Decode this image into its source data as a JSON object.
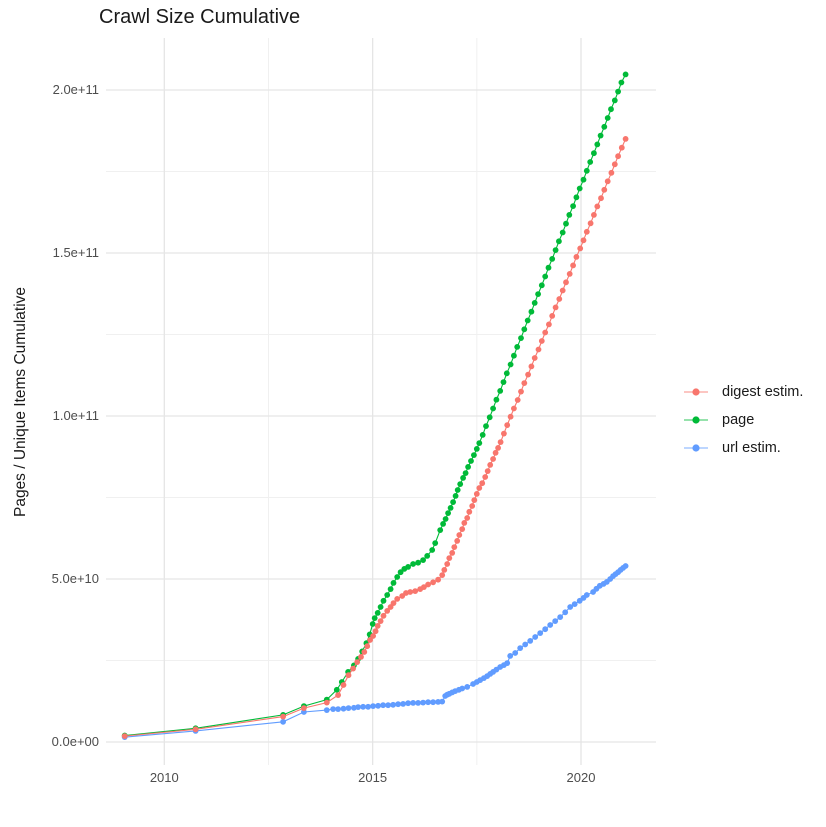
{
  "chart_data": {
    "type": "scatter",
    "title": "Crawl Size Cumulative",
    "xlabel": "",
    "ylabel": "Pages / Unique Items Cumulative",
    "legend_position": "right",
    "grid": "major+minor",
    "x_unit": "year",
    "xlim": [
      2008.6,
      2021.8
    ],
    "ylim": [
      0,
      216000000000.0
    ],
    "value_unit": "billions (1e9 items)",
    "xticks": {
      "values": [
        2010,
        2015,
        2020
      ],
      "labels": [
        "2010",
        "2015",
        "2020"
      ],
      "minor": [
        2012.5,
        2017.5
      ]
    },
    "yticks": {
      "values": [
        0,
        50,
        100,
        150,
        200
      ],
      "labels": [
        "0.0e+00",
        "5.0e+10",
        "1.0e+11",
        "1.5e+11",
        "2.0e+11"
      ],
      "minor": [
        25,
        75,
        125,
        175
      ]
    },
    "series": [
      {
        "id": "digest-estim",
        "name": "digest estim.",
        "color": "#F8766D",
        "points": [
          [
            2009.05,
            1.8
          ],
          [
            2010.75,
            3.9
          ],
          [
            2012.85,
            7.8
          ],
          [
            2013.35,
            10.4
          ],
          [
            2013.9,
            12.1
          ],
          [
            2014.17,
            14.4
          ],
          [
            2014.3,
            17.5
          ],
          [
            2014.42,
            20.5
          ],
          [
            2014.53,
            22.5
          ],
          [
            2014.63,
            24.5
          ],
          [
            2014.72,
            26.1
          ],
          [
            2014.8,
            27.6
          ],
          [
            2014.87,
            29.4
          ],
          [
            2014.94,
            31.3
          ],
          [
            2015.01,
            32.5
          ],
          [
            2015.07,
            34.0
          ],
          [
            2015.12,
            35.6
          ],
          [
            2015.19,
            37.1
          ],
          [
            2015.26,
            38.7
          ],
          [
            2015.35,
            40.2
          ],
          [
            2015.43,
            41.4
          ],
          [
            2015.5,
            42.6
          ],
          [
            2015.59,
            43.9
          ],
          [
            2015.71,
            44.8
          ],
          [
            2015.8,
            45.7
          ],
          [
            2015.9,
            46.0
          ],
          [
            2016.02,
            46.3
          ],
          [
            2016.14,
            46.9
          ],
          [
            2016.23,
            47.5
          ],
          [
            2016.33,
            48.3
          ],
          [
            2016.45,
            49.0
          ],
          [
            2016.57,
            49.8
          ],
          [
            2016.67,
            51.2
          ],
          [
            2016.72,
            52.8
          ],
          [
            2016.79,
            54.6
          ],
          [
            2016.84,
            56.4
          ],
          [
            2016.91,
            58.0
          ],
          [
            2016.96,
            59.8
          ],
          [
            2017.03,
            61.7
          ],
          [
            2017.08,
            63.5
          ],
          [
            2017.15,
            65.3
          ],
          [
            2017.2,
            67.2
          ],
          [
            2017.27,
            68.7
          ],
          [
            2017.32,
            70.6
          ],
          [
            2017.39,
            72.4
          ],
          [
            2017.44,
            74.2
          ],
          [
            2017.5,
            76.1
          ],
          [
            2017.56,
            77.9
          ],
          [
            2017.63,
            79.4
          ],
          [
            2017.7,
            81.3
          ],
          [
            2017.76,
            83.1
          ],
          [
            2017.82,
            85.0
          ],
          [
            2017.89,
            86.8
          ],
          [
            2017.95,
            88.7
          ],
          [
            2018.01,
            90.2
          ],
          [
            2018.07,
            92.0
          ],
          [
            2018.15,
            94.6
          ],
          [
            2018.23,
            97.2
          ],
          [
            2018.31,
            99.8
          ],
          [
            2018.39,
            102.3
          ],
          [
            2018.48,
            104.9
          ],
          [
            2018.56,
            107.5
          ],
          [
            2018.64,
            110.1
          ],
          [
            2018.73,
            112.7
          ],
          [
            2018.81,
            115.2
          ],
          [
            2018.89,
            117.8
          ],
          [
            2018.98,
            120.4
          ],
          [
            2019.06,
            123.0
          ],
          [
            2019.14,
            125.6
          ],
          [
            2019.23,
            128.1
          ],
          [
            2019.31,
            130.7
          ],
          [
            2019.39,
            133.3
          ],
          [
            2019.48,
            135.9
          ],
          [
            2019.56,
            138.5
          ],
          [
            2019.64,
            141.0
          ],
          [
            2019.73,
            143.6
          ],
          [
            2019.81,
            146.2
          ],
          [
            2019.89,
            148.8
          ],
          [
            2019.98,
            151.4
          ],
          [
            2020.06,
            153.9
          ],
          [
            2020.14,
            156.5
          ],
          [
            2020.23,
            159.1
          ],
          [
            2020.31,
            161.7
          ],
          [
            2020.39,
            164.3
          ],
          [
            2020.48,
            166.8
          ],
          [
            2020.56,
            169.4
          ],
          [
            2020.64,
            172.0
          ],
          [
            2020.73,
            174.6
          ],
          [
            2020.81,
            177.2
          ],
          [
            2020.89,
            179.7
          ],
          [
            2020.98,
            182.3
          ],
          [
            2021.07,
            185.0
          ]
        ]
      },
      {
        "id": "page",
        "name": "page",
        "color": "#00BA38",
        "points": [
          [
            2009.05,
            2.0
          ],
          [
            2010.75,
            4.2
          ],
          [
            2012.85,
            8.3
          ],
          [
            2013.35,
            11.0
          ],
          [
            2013.9,
            13.0
          ],
          [
            2014.14,
            16.0
          ],
          [
            2014.26,
            18.4
          ],
          [
            2014.41,
            21.5
          ],
          [
            2014.55,
            23.5
          ],
          [
            2014.65,
            25.5
          ],
          [
            2014.75,
            27.8
          ],
          [
            2014.85,
            30.3
          ],
          [
            2014.93,
            33.0
          ],
          [
            2015.0,
            36.2
          ],
          [
            2015.05,
            38.0
          ],
          [
            2015.12,
            39.6
          ],
          [
            2015.19,
            41.4
          ],
          [
            2015.26,
            43.3
          ],
          [
            2015.35,
            45.1
          ],
          [
            2015.43,
            46.9
          ],
          [
            2015.5,
            48.8
          ],
          [
            2015.59,
            50.6
          ],
          [
            2015.67,
            52.1
          ],
          [
            2015.76,
            53.1
          ],
          [
            2015.85,
            53.7
          ],
          [
            2015.97,
            54.6
          ],
          [
            2016.09,
            55.0
          ],
          [
            2016.21,
            55.8
          ],
          [
            2016.31,
            57.1
          ],
          [
            2016.43,
            58.9
          ],
          [
            2016.5,
            61.0
          ],
          [
            2016.62,
            65.0
          ],
          [
            2016.69,
            66.9
          ],
          [
            2016.75,
            68.4
          ],
          [
            2016.81,
            70.2
          ],
          [
            2016.87,
            71.8
          ],
          [
            2016.93,
            73.6
          ],
          [
            2016.99,
            75.5
          ],
          [
            2017.04,
            77.3
          ],
          [
            2017.1,
            79.1
          ],
          [
            2017.17,
            81.0
          ],
          [
            2017.23,
            82.5
          ],
          [
            2017.29,
            84.4
          ],
          [
            2017.36,
            86.2
          ],
          [
            2017.43,
            88.0
          ],
          [
            2017.5,
            89.9
          ],
          [
            2017.56,
            91.7
          ],
          [
            2017.64,
            94.2
          ],
          [
            2017.72,
            96.9
          ],
          [
            2017.81,
            99.6
          ],
          [
            2017.89,
            102.3
          ],
          [
            2017.97,
            105.0
          ],
          [
            2018.06,
            107.7
          ],
          [
            2018.14,
            110.4
          ],
          [
            2018.22,
            113.1
          ],
          [
            2018.31,
            115.8
          ],
          [
            2018.39,
            118.5
          ],
          [
            2018.47,
            121.2
          ],
          [
            2018.56,
            123.9
          ],
          [
            2018.64,
            126.6
          ],
          [
            2018.72,
            129.3
          ],
          [
            2018.81,
            132.0
          ],
          [
            2018.89,
            134.7
          ],
          [
            2018.97,
            137.4
          ],
          [
            2019.06,
            140.1
          ],
          [
            2019.14,
            142.8
          ],
          [
            2019.22,
            145.5
          ],
          [
            2019.31,
            148.2
          ],
          [
            2019.39,
            150.9
          ],
          [
            2019.47,
            153.6
          ],
          [
            2019.56,
            156.3
          ],
          [
            2019.64,
            159.0
          ],
          [
            2019.72,
            161.7
          ],
          [
            2019.81,
            164.4
          ],
          [
            2019.89,
            167.1
          ],
          [
            2019.97,
            169.8
          ],
          [
            2020.06,
            172.5
          ],
          [
            2020.14,
            175.2
          ],
          [
            2020.22,
            177.9
          ],
          [
            2020.31,
            180.6
          ],
          [
            2020.39,
            183.3
          ],
          [
            2020.47,
            186.0
          ],
          [
            2020.56,
            188.7
          ],
          [
            2020.64,
            191.4
          ],
          [
            2020.72,
            194.1
          ],
          [
            2020.81,
            196.8
          ],
          [
            2020.89,
            199.5
          ],
          [
            2020.97,
            202.3
          ],
          [
            2021.07,
            204.8
          ]
        ]
      },
      {
        "id": "url-estim",
        "name": "url estim.",
        "color": "#619CFF",
        "points": [
          [
            2009.05,
            1.5
          ],
          [
            2010.75,
            3.4
          ],
          [
            2012.85,
            6.2
          ],
          [
            2013.35,
            9.2
          ],
          [
            2013.9,
            9.8
          ],
          [
            2014.05,
            10.1
          ],
          [
            2014.17,
            10.1
          ],
          [
            2014.3,
            10.2
          ],
          [
            2014.42,
            10.4
          ],
          [
            2014.55,
            10.5
          ],
          [
            2014.65,
            10.7
          ],
          [
            2014.77,
            10.8
          ],
          [
            2014.89,
            10.8
          ],
          [
            2015.01,
            11.0
          ],
          [
            2015.13,
            11.1
          ],
          [
            2015.25,
            11.3
          ],
          [
            2015.37,
            11.3
          ],
          [
            2015.49,
            11.4
          ],
          [
            2015.61,
            11.6
          ],
          [
            2015.73,
            11.7
          ],
          [
            2015.85,
            11.9
          ],
          [
            2015.97,
            12.0
          ],
          [
            2016.09,
            12.0
          ],
          [
            2016.21,
            12.1
          ],
          [
            2016.33,
            12.2
          ],
          [
            2016.45,
            12.2
          ],
          [
            2016.57,
            12.3
          ],
          [
            2016.67,
            12.4
          ],
          [
            2016.74,
            14.1
          ],
          [
            2016.79,
            14.5
          ],
          [
            2016.84,
            14.8
          ],
          [
            2016.91,
            15.2
          ],
          [
            2016.98,
            15.6
          ],
          [
            2017.07,
            16.0
          ],
          [
            2017.15,
            16.4
          ],
          [
            2017.27,
            16.9
          ],
          [
            2017.41,
            17.8
          ],
          [
            2017.5,
            18.4
          ],
          [
            2017.58,
            19.0
          ],
          [
            2017.67,
            19.6
          ],
          [
            2017.75,
            20.2
          ],
          [
            2017.82,
            20.9
          ],
          [
            2017.89,
            21.5
          ],
          [
            2017.97,
            22.2
          ],
          [
            2018.06,
            23.0
          ],
          [
            2018.15,
            23.6
          ],
          [
            2018.23,
            24.2
          ],
          [
            2018.3,
            26.4
          ],
          [
            2018.42,
            27.3
          ],
          [
            2018.54,
            28.8
          ],
          [
            2018.66,
            29.9
          ],
          [
            2018.78,
            31.0
          ],
          [
            2018.9,
            32.2
          ],
          [
            2019.02,
            33.4
          ],
          [
            2019.14,
            34.6
          ],
          [
            2019.26,
            35.9
          ],
          [
            2019.38,
            37.1
          ],
          [
            2019.5,
            38.3
          ],
          [
            2019.62,
            39.8
          ],
          [
            2019.74,
            41.4
          ],
          [
            2019.85,
            42.3
          ],
          [
            2019.97,
            43.3
          ],
          [
            2020.06,
            44.2
          ],
          [
            2020.14,
            45.1
          ],
          [
            2020.29,
            46.0
          ],
          [
            2020.37,
            47.0
          ],
          [
            2020.45,
            47.9
          ],
          [
            2020.54,
            48.5
          ],
          [
            2020.62,
            49.1
          ],
          [
            2020.7,
            50.0
          ],
          [
            2020.77,
            50.9
          ],
          [
            2020.83,
            51.5
          ],
          [
            2020.89,
            52.1
          ],
          [
            2020.95,
            52.8
          ],
          [
            2021.01,
            53.4
          ],
          [
            2021.07,
            54.0
          ]
        ]
      }
    ],
    "style": {
      "grid_major_color": "#e5e5e5",
      "grid_minor_color": "#f0f0f0",
      "tick_label_color": "#4d4d4d",
      "text_color": "#1a1a1a",
      "background": "#ffffff"
    }
  }
}
